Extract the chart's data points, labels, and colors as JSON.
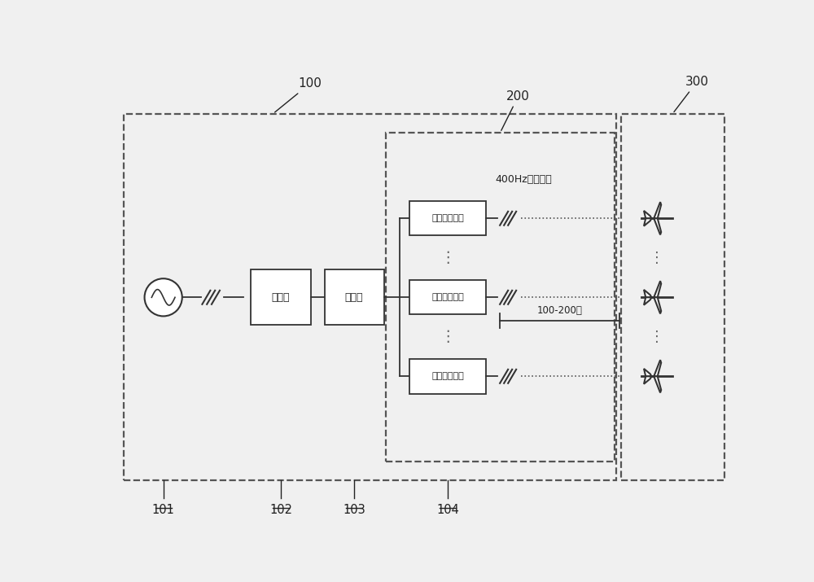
{
  "bg_color": "#f0f0f0",
  "transformer_label": "变压器",
  "switchboard_label": "配电柜",
  "power_label": "航空地面电源",
  "cable_label": "400Hz输电线缆",
  "distance_label": "100-200米",
  "label100": "100",
  "label101": "101",
  "label102": "102",
  "label103": "103",
  "label104": "104",
  "label200": "200",
  "label300": "300"
}
